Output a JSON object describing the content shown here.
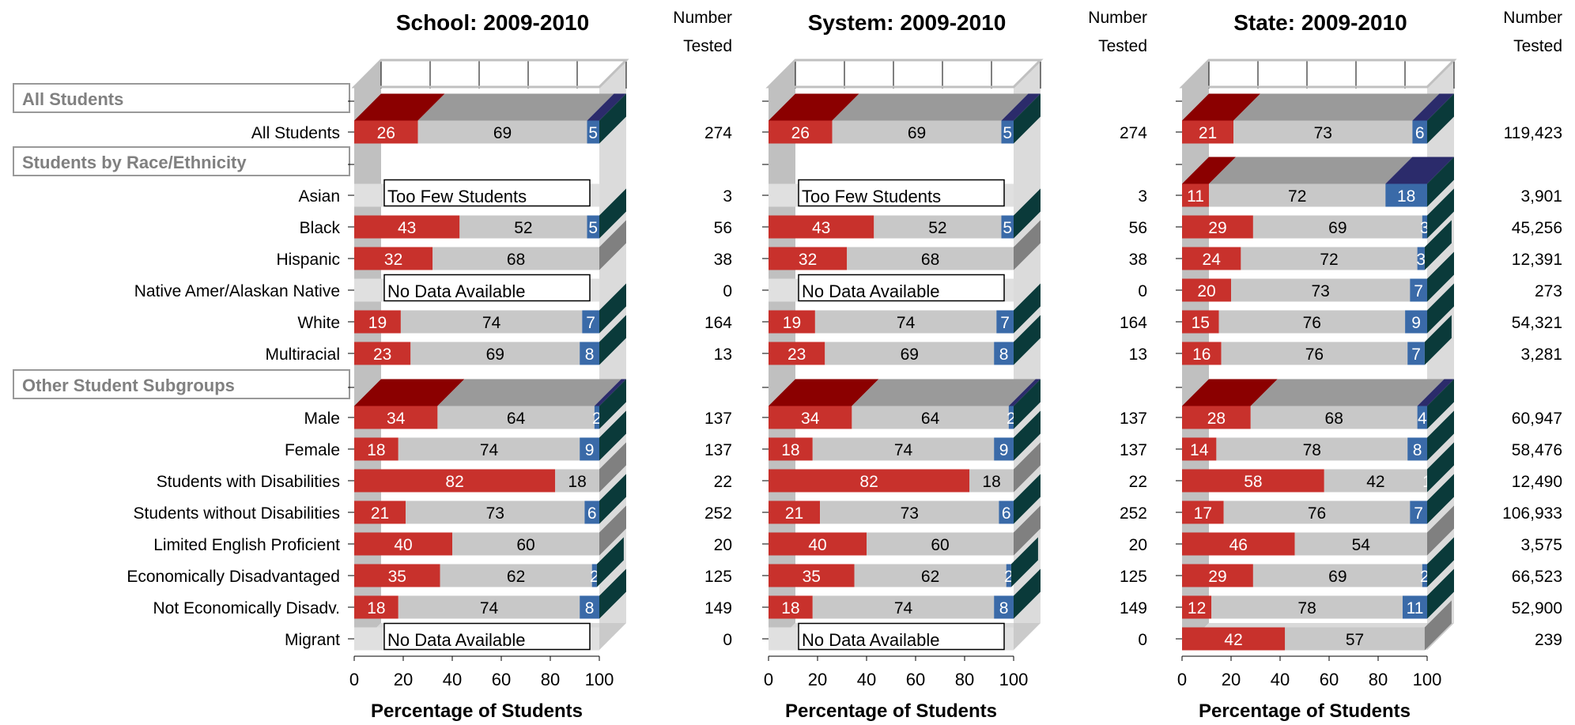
{
  "number_tested_header": [
    "Number",
    "Tested"
  ],
  "group_headers": [
    "All Students",
    "Students by Race/Ethnicity",
    "Other Student Subgroups"
  ],
  "notes": {
    "too_few": "Too Few Students",
    "no_data": "No Data Available"
  },
  "colors": {
    "red": "#c8312c",
    "red_top": "#8b0000",
    "gray": "#c8c8c8",
    "gray_top": "#9a9a9a",
    "blue": "#3a6aa8",
    "blue_top": "#2b2b6b",
    "blue_side": "#0a3a3a",
    "wall": "#c0c0c0",
    "floor": "#b0b0b0"
  },
  "chart_data": [
    {
      "type": "bar",
      "stacked": true,
      "orientation": "horizontal",
      "title": "School: 2009-2010",
      "xlabel": "Percentage of Students",
      "xlim": [
        0,
        100
      ],
      "xticks": [
        0,
        20,
        40,
        60,
        80,
        100
      ],
      "rows": [
        {
          "label": "All Students",
          "values": [
            26,
            69,
            5
          ],
          "n": "274"
        },
        {
          "label": "Asian",
          "values": null,
          "note": "Too Few Students",
          "n": "3"
        },
        {
          "label": "Black",
          "values": [
            43,
            52,
            5
          ],
          "n": "56"
        },
        {
          "label": "Hispanic",
          "values": [
            32,
            68,
            0
          ],
          "n": "38"
        },
        {
          "label": "Native Amer/Alaskan Native",
          "values": null,
          "note": "No Data Available",
          "n": "0"
        },
        {
          "label": "White",
          "values": [
            19,
            74,
            7
          ],
          "n": "164"
        },
        {
          "label": "Multiracial",
          "values": [
            23,
            69,
            8
          ],
          "n": "13"
        },
        {
          "label": "Male",
          "values": [
            34,
            64,
            2
          ],
          "n": "137"
        },
        {
          "label": "Female",
          "values": [
            18,
            74,
            9
          ],
          "n": "137"
        },
        {
          "label": "Students with Disabilities",
          "values": [
            82,
            18,
            0
          ],
          "n": "22"
        },
        {
          "label": "Students without Disabilities",
          "values": [
            21,
            73,
            6
          ],
          "n": "252"
        },
        {
          "label": "Limited English Proficient",
          "values": [
            40,
            60,
            0
          ],
          "n": "20"
        },
        {
          "label": "Economically Disadvantaged",
          "values": [
            35,
            62,
            2
          ],
          "n": "125"
        },
        {
          "label": "Not Economically Disadv.",
          "values": [
            18,
            74,
            8
          ],
          "n": "149"
        },
        {
          "label": "Migrant",
          "values": null,
          "note": "No Data Available",
          "n": "0"
        }
      ]
    },
    {
      "type": "bar",
      "stacked": true,
      "orientation": "horizontal",
      "title": "System: 2009-2010",
      "xlabel": "Percentage of Students",
      "xlim": [
        0,
        100
      ],
      "xticks": [
        0,
        20,
        40,
        60,
        80,
        100
      ],
      "rows": [
        {
          "label": "All Students",
          "values": [
            26,
            69,
            5
          ],
          "n": "274"
        },
        {
          "label": "Asian",
          "values": null,
          "note": "Too Few Students",
          "n": "3"
        },
        {
          "label": "Black",
          "values": [
            43,
            52,
            5
          ],
          "n": "56"
        },
        {
          "label": "Hispanic",
          "values": [
            32,
            68,
            0
          ],
          "n": "38"
        },
        {
          "label": "Native Amer/Alaskan Native",
          "values": null,
          "note": "No Data Available",
          "n": "0"
        },
        {
          "label": "White",
          "values": [
            19,
            74,
            7
          ],
          "n": "164"
        },
        {
          "label": "Multiracial",
          "values": [
            23,
            69,
            8
          ],
          "n": "13"
        },
        {
          "label": "Male",
          "values": [
            34,
            64,
            2
          ],
          "n": "137"
        },
        {
          "label": "Female",
          "values": [
            18,
            74,
            9
          ],
          "n": "137"
        },
        {
          "label": "Students with Disabilities",
          "values": [
            82,
            18,
            0
          ],
          "n": "22"
        },
        {
          "label": "Students without Disabilities",
          "values": [
            21,
            73,
            6
          ],
          "n": "252"
        },
        {
          "label": "Limited English Proficient",
          "values": [
            40,
            60,
            0
          ],
          "n": "20"
        },
        {
          "label": "Economically Disadvantaged",
          "values": [
            35,
            62,
            2
          ],
          "n": "125"
        },
        {
          "label": "Not Economically Disadv.",
          "values": [
            18,
            74,
            8
          ],
          "n": "149"
        },
        {
          "label": "Migrant",
          "values": null,
          "note": "No Data Available",
          "n": "0"
        }
      ]
    },
    {
      "type": "bar",
      "stacked": true,
      "orientation": "horizontal",
      "title": "State: 2009-2010",
      "xlabel": "Percentage of Students",
      "xlim": [
        0,
        100
      ],
      "xticks": [
        0,
        20,
        40,
        60,
        80,
        100
      ],
      "rows": [
        {
          "label": "All Students",
          "values": [
            21,
            73,
            6
          ],
          "n": "119,423"
        },
        {
          "label": "Asian",
          "values": [
            11,
            72,
            18
          ],
          "n": "3,901"
        },
        {
          "label": "Black",
          "values": [
            29,
            69,
            3
          ],
          "n": "45,256"
        },
        {
          "label": "Hispanic",
          "values": [
            24,
            72,
            3
          ],
          "n": "12,391"
        },
        {
          "label": "Native Amer/Alaskan Native",
          "values": [
            20,
            73,
            7
          ],
          "n": "273"
        },
        {
          "label": "White",
          "values": [
            15,
            76,
            9
          ],
          "n": "54,321"
        },
        {
          "label": "Multiracial",
          "values": [
            16,
            76,
            7
          ],
          "n": "3,281"
        },
        {
          "label": "Male",
          "values": [
            28,
            68,
            4
          ],
          "n": "60,947"
        },
        {
          "label": "Female",
          "values": [
            14,
            78,
            8
          ],
          "n": "58,476"
        },
        {
          "label": "Students with Disabilities",
          "values": [
            58,
            42,
            1
          ],
          "n": "12,490"
        },
        {
          "label": "Students without Disabilities",
          "values": [
            17,
            76,
            7
          ],
          "n": "106,933"
        },
        {
          "label": "Limited English Proficient",
          "values": [
            46,
            54,
            0
          ],
          "n": "3,575"
        },
        {
          "label": "Economically Disadvantaged",
          "values": [
            29,
            69,
            2
          ],
          "n": "66,523"
        },
        {
          "label": "Not Economically Disadv.",
          "values": [
            12,
            78,
            11
          ],
          "n": "52,900"
        },
        {
          "label": "Migrant",
          "values": [
            42,
            57,
            0
          ],
          "n": "239"
        }
      ]
    }
  ]
}
